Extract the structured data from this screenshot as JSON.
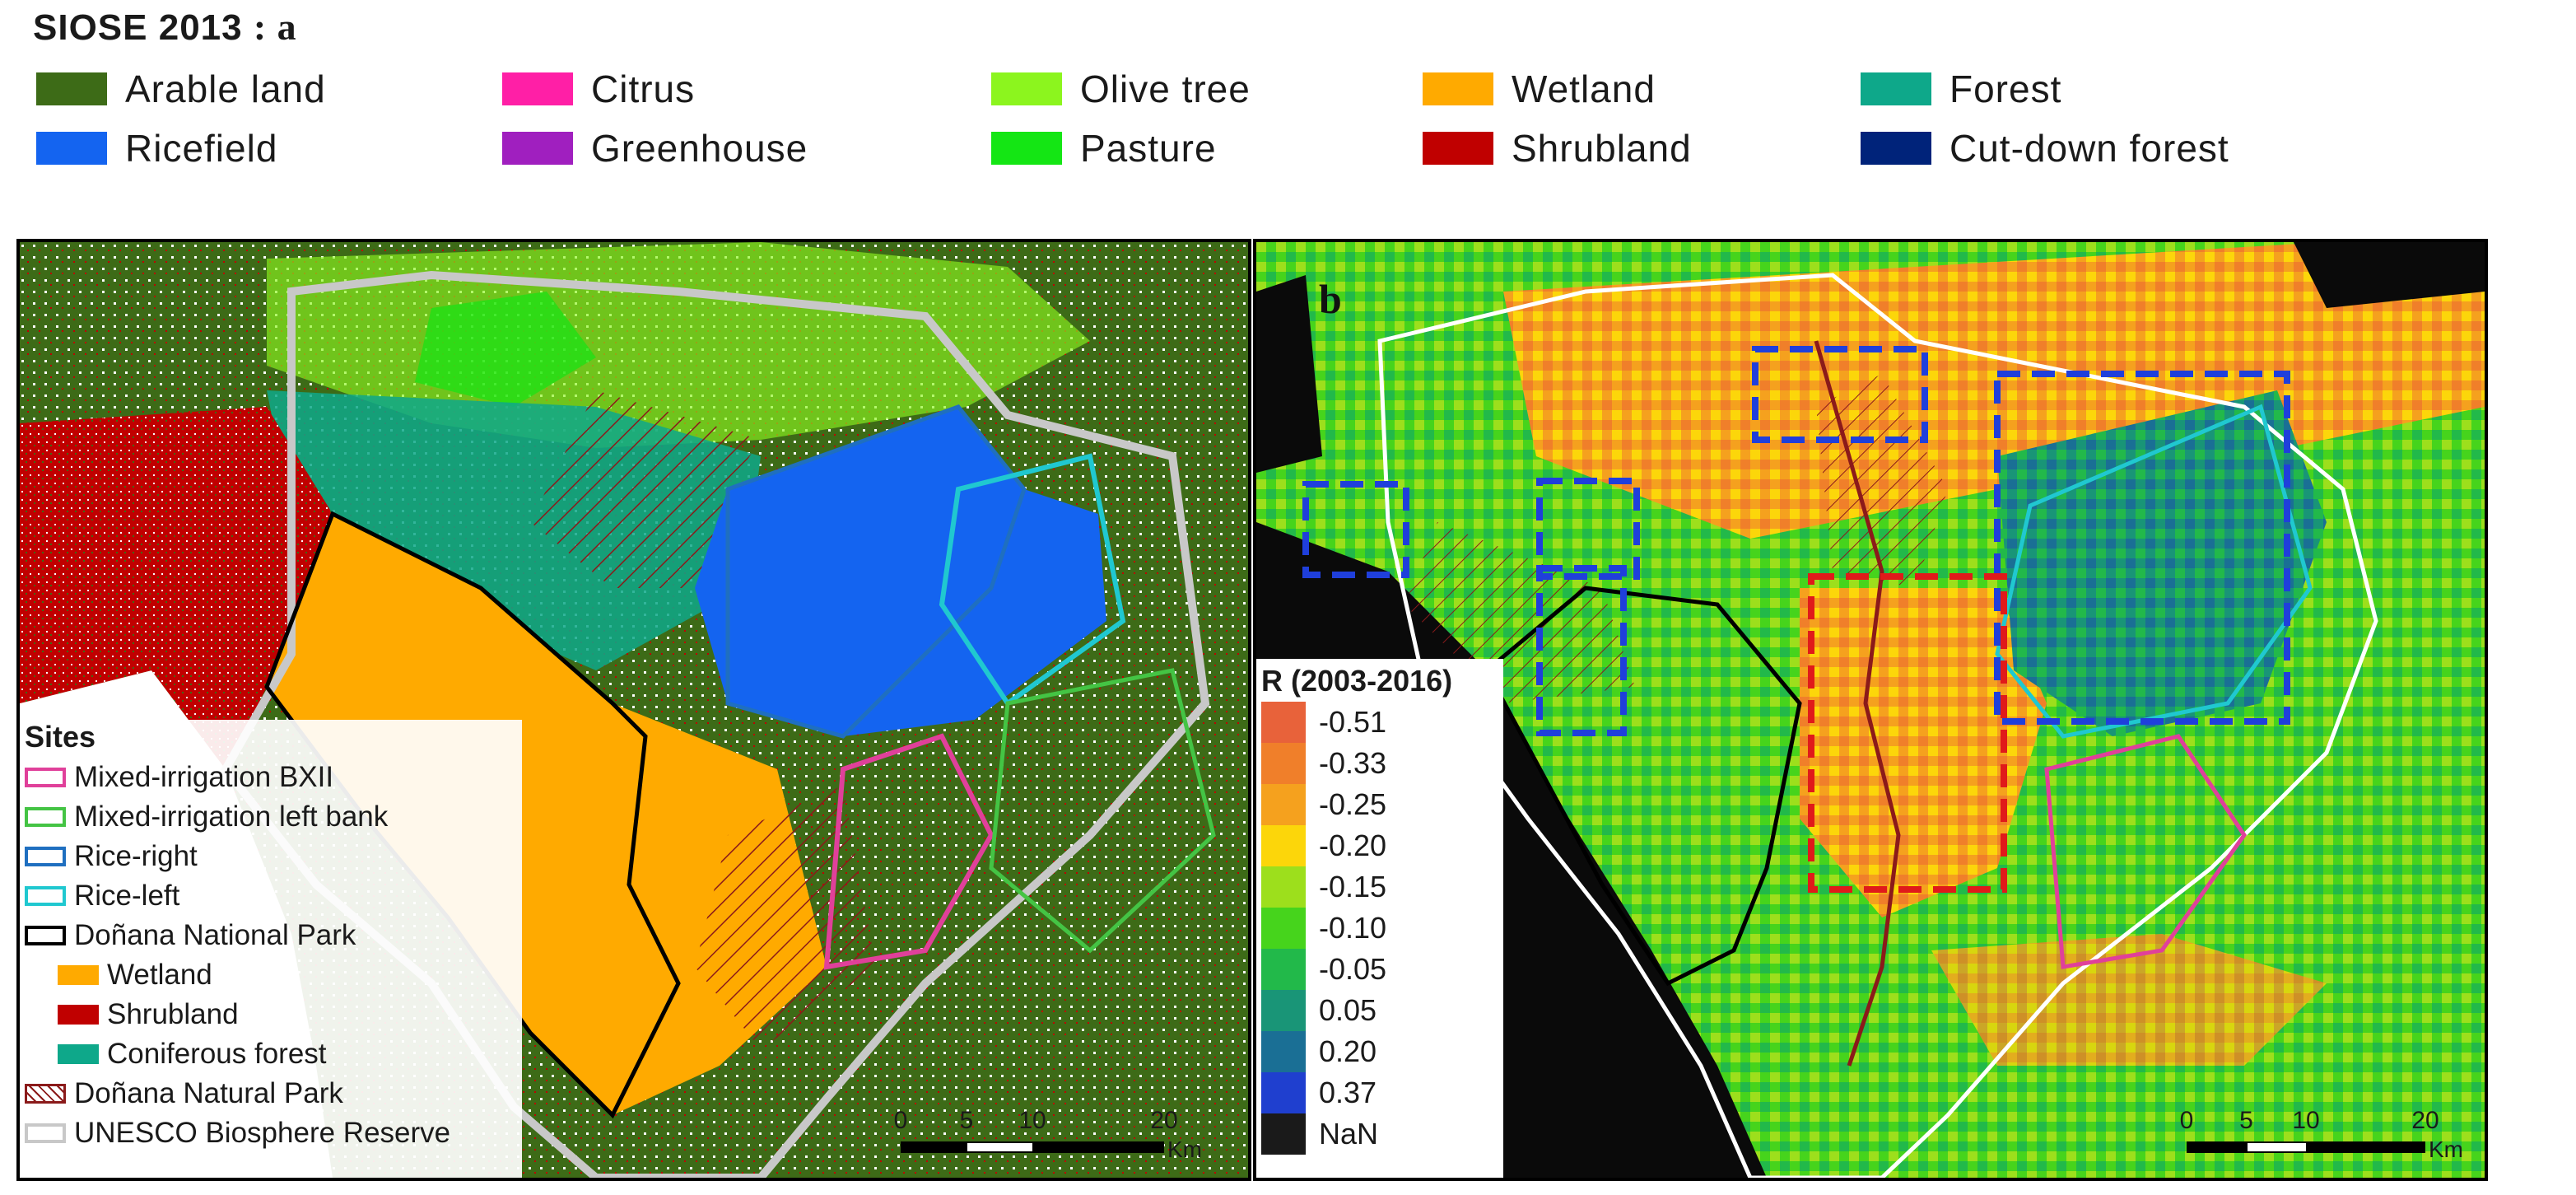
{
  "figure": {
    "title": "SIOSE 2013",
    "panel_a_suffix": "a",
    "panel_b_letter": "b"
  },
  "land_use_legend": [
    {
      "label": "Arable land",
      "color": "#3d6b17"
    },
    {
      "label": "Citrus",
      "color": "#ff1fa6"
    },
    {
      "label": "Olive tree",
      "color": "#8cf51e"
    },
    {
      "label": "Wetland",
      "color": "#ffaa00"
    },
    {
      "label": "Forest",
      "color": "#0ea88a"
    },
    {
      "label": "Ricefield",
      "color": "#1464f0"
    },
    {
      "label": "Greenhouse",
      "color": "#a01fbf"
    },
    {
      "label": "Pasture",
      "color": "#14e614"
    },
    {
      "label": "Shrubland",
      "color": "#c00000"
    },
    {
      "label": "Cut-down forest",
      "color": "#00237a"
    }
  ],
  "sites_legend": {
    "title": "Sites",
    "items": [
      {
        "label": "Mixed-irrigation BXII",
        "style": "outline",
        "color": "#e0409a"
      },
      {
        "label": "Mixed-irrigation left bank",
        "style": "outline",
        "color": "#44c444"
      },
      {
        "label": "Rice-right",
        "style": "outline",
        "color": "#1f6fc0"
      },
      {
        "label": "Rice-left",
        "style": "outline",
        "color": "#20c8d0"
      },
      {
        "label": "Doñana National Park",
        "style": "outline",
        "color": "#000000"
      },
      {
        "label": "Wetland",
        "style": "fill",
        "color": "#ffaa00"
      },
      {
        "label": "Shrubland",
        "style": "fill",
        "color": "#c00000"
      },
      {
        "label": "Coniferous forest",
        "style": "fill",
        "color": "#0ea88a"
      },
      {
        "label": "Doñana Natural Park",
        "style": "hatched",
        "color": "#8b1a1a"
      },
      {
        "label": "UNESCO Biosphere Reserve",
        "style": "outline",
        "color": "#c8c8c8"
      }
    ]
  },
  "r_legend": {
    "title": "R (2003-2016)",
    "items": [
      {
        "label": "-0.51",
        "color": "#e8623a"
      },
      {
        "label": "-0.33",
        "color": "#f07f2a"
      },
      {
        "label": "-0.25",
        "color": "#f5a11e"
      },
      {
        "label": "-0.20",
        "color": "#fcd60a"
      },
      {
        "label": "-0.15",
        "color": "#9ddf1c"
      },
      {
        "label": "-0.10",
        "color": "#46d41c"
      },
      {
        "label": "-0.05",
        "color": "#22b94a"
      },
      {
        "label": "0.05",
        "color": "#199577"
      },
      {
        "label": "0.20",
        "color": "#1a6f95"
      },
      {
        "label": "0.37",
        "color": "#1f3fcf"
      },
      {
        "label": "NaN",
        "color": "#1a1a1a"
      }
    ]
  },
  "scalebar": {
    "ticks": [
      "0",
      "5",
      "10",
      "20"
    ],
    "unit": "Km"
  }
}
